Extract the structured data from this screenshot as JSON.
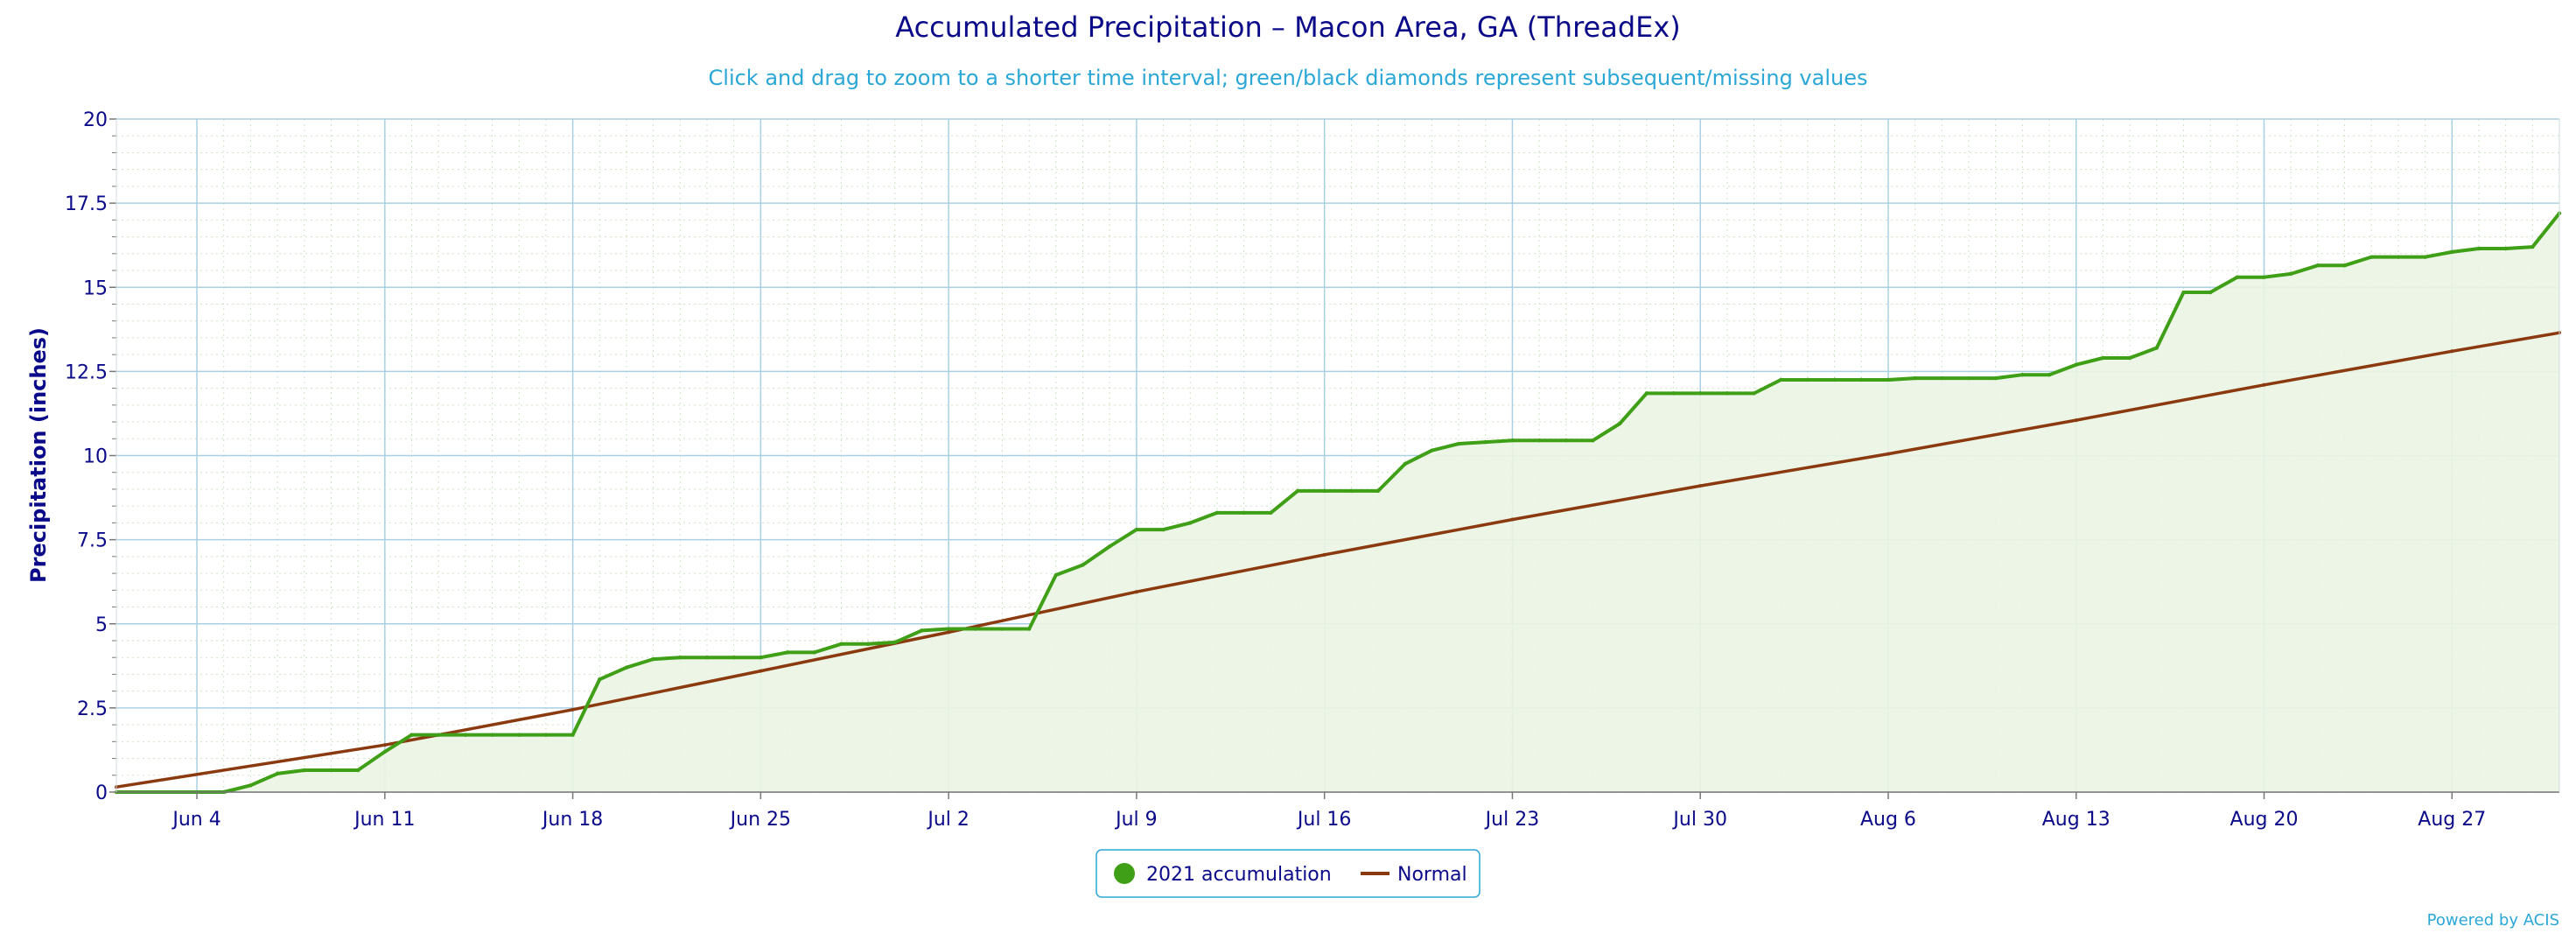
{
  "colors": {
    "accumulation": "#3f9f16",
    "accumulation_fill": "#eaf4e3",
    "normal": "#8b3a0f",
    "grid": "#a9d0e2",
    "title": "#0b0b8a",
    "subtitle": "#2aa7d6"
  },
  "legend": {
    "accumulation_label": "2021 accumulation",
    "normal_label": "Normal"
  },
  "credit": "Powered by ACIS",
  "chart_data": {
    "type": "line",
    "title": "Accumulated Precipitation – Macon Area, GA (ThreadEx)",
    "subtitle": "Click and drag to zoom to a shorter time interval; green/black diamonds represent subsequent/missing values",
    "ylabel": "Precipitation (inches)",
    "xlabel": "",
    "ylim": [
      0,
      20
    ],
    "xlim": [
      "2021-06-01",
      "2021-08-31"
    ],
    "yticks": [
      "0",
      "2.5",
      "5",
      "7.5",
      "10",
      "12.5",
      "15",
      "17.5",
      "20"
    ],
    "xticks": [
      {
        "date": "2021-06-04",
        "label": "Jun 4"
      },
      {
        "date": "2021-06-11",
        "label": "Jun 11"
      },
      {
        "date": "2021-06-18",
        "label": "Jun 18"
      },
      {
        "date": "2021-06-25",
        "label": "Jun 25"
      },
      {
        "date": "2021-07-02",
        "label": "Jul 2"
      },
      {
        "date": "2021-07-09",
        "label": "Jul 9"
      },
      {
        "date": "2021-07-16",
        "label": "Jul 16"
      },
      {
        "date": "2021-07-23",
        "label": "Jul 23"
      },
      {
        "date": "2021-07-30",
        "label": "Jul 30"
      },
      {
        "date": "2021-08-06",
        "label": "Aug 6"
      },
      {
        "date": "2021-08-13",
        "label": "Aug 13"
      },
      {
        "date": "2021-08-20",
        "label": "Aug 20"
      },
      {
        "date": "2021-08-27",
        "label": "Aug 27"
      }
    ],
    "grid": true,
    "legend_position": "bottom-center",
    "series": [
      {
        "name": "2021 accumulation",
        "points": [
          [
            "2021-06-01",
            0
          ],
          [
            "2021-06-05",
            0
          ],
          [
            "2021-06-06",
            0.2
          ],
          [
            "2021-06-07",
            0.55
          ],
          [
            "2021-06-08",
            0.65
          ],
          [
            "2021-06-09",
            0.65
          ],
          [
            "2021-06-10",
            0.65
          ],
          [
            "2021-06-11",
            1.2
          ],
          [
            "2021-06-12",
            1.7
          ],
          [
            "2021-06-13",
            1.7
          ],
          [
            "2021-06-14",
            1.7
          ],
          [
            "2021-06-15",
            1.7
          ],
          [
            "2021-06-16",
            1.7
          ],
          [
            "2021-06-17",
            1.7
          ],
          [
            "2021-06-18",
            1.7
          ],
          [
            "2021-06-19",
            3.35
          ],
          [
            "2021-06-20",
            3.7
          ],
          [
            "2021-06-21",
            3.95
          ],
          [
            "2021-06-22",
            4.0
          ],
          [
            "2021-06-23",
            4.0
          ],
          [
            "2021-06-24",
            4.0
          ],
          [
            "2021-06-25",
            4.0
          ],
          [
            "2021-06-26",
            4.15
          ],
          [
            "2021-06-27",
            4.15
          ],
          [
            "2021-06-28",
            4.4
          ],
          [
            "2021-06-29",
            4.4
          ],
          [
            "2021-06-30",
            4.45
          ],
          [
            "2021-07-01",
            4.8
          ],
          [
            "2021-07-02",
            4.85
          ],
          [
            "2021-07-03",
            4.85
          ],
          [
            "2021-07-04",
            4.85
          ],
          [
            "2021-07-05",
            4.85
          ],
          [
            "2021-07-06",
            6.45
          ],
          [
            "2021-07-07",
            6.75
          ],
          [
            "2021-07-08",
            7.3
          ],
          [
            "2021-07-09",
            7.8
          ],
          [
            "2021-07-10",
            7.8
          ],
          [
            "2021-07-11",
            8.0
          ],
          [
            "2021-07-12",
            8.3
          ],
          [
            "2021-07-13",
            8.3
          ],
          [
            "2021-07-14",
            8.3
          ],
          [
            "2021-07-15",
            8.95
          ],
          [
            "2021-07-16",
            8.95
          ],
          [
            "2021-07-17",
            8.95
          ],
          [
            "2021-07-18",
            8.95
          ],
          [
            "2021-07-19",
            9.75
          ],
          [
            "2021-07-20",
            10.15
          ],
          [
            "2021-07-21",
            10.35
          ],
          [
            "2021-07-22",
            10.4
          ],
          [
            "2021-07-23",
            10.45
          ],
          [
            "2021-07-24",
            10.45
          ],
          [
            "2021-07-25",
            10.45
          ],
          [
            "2021-07-26",
            10.45
          ],
          [
            "2021-07-27",
            10.95
          ],
          [
            "2021-07-28",
            11.85
          ],
          [
            "2021-07-29",
            11.85
          ],
          [
            "2021-07-30",
            11.85
          ],
          [
            "2021-07-31",
            11.85
          ],
          [
            "2021-08-01",
            11.85
          ],
          [
            "2021-08-02",
            12.25
          ],
          [
            "2021-08-03",
            12.25
          ],
          [
            "2021-08-04",
            12.25
          ],
          [
            "2021-08-05",
            12.25
          ],
          [
            "2021-08-06",
            12.25
          ],
          [
            "2021-08-07",
            12.3
          ],
          [
            "2021-08-08",
            12.3
          ],
          [
            "2021-08-09",
            12.3
          ],
          [
            "2021-08-10",
            12.3
          ],
          [
            "2021-08-11",
            12.4
          ],
          [
            "2021-08-12",
            12.4
          ],
          [
            "2021-08-13",
            12.7
          ],
          [
            "2021-08-14",
            12.9
          ],
          [
            "2021-08-15",
            12.9
          ],
          [
            "2021-08-16",
            13.2
          ],
          [
            "2021-08-17",
            14.85
          ],
          [
            "2021-08-18",
            14.85
          ],
          [
            "2021-08-19",
            15.3
          ],
          [
            "2021-08-20",
            15.3
          ],
          [
            "2021-08-21",
            15.4
          ],
          [
            "2021-08-22",
            15.65
          ],
          [
            "2021-08-23",
            15.65
          ],
          [
            "2021-08-24",
            15.9
          ],
          [
            "2021-08-25",
            15.9
          ],
          [
            "2021-08-26",
            15.9
          ],
          [
            "2021-08-27",
            16.05
          ],
          [
            "2021-08-28",
            16.15
          ],
          [
            "2021-08-29",
            16.15
          ],
          [
            "2021-08-30",
            16.2
          ],
          [
            "2021-08-31",
            17.2
          ]
        ]
      },
      {
        "name": "Normal",
        "points": [
          [
            "2021-06-01",
            0.15
          ],
          [
            "2021-06-11",
            1.4
          ],
          [
            "2021-06-18",
            2.45
          ],
          [
            "2021-06-25",
            3.6
          ],
          [
            "2021-07-02",
            4.75
          ],
          [
            "2021-07-09",
            5.95
          ],
          [
            "2021-07-16",
            7.05
          ],
          [
            "2021-07-23",
            8.1
          ],
          [
            "2021-07-30",
            9.1
          ],
          [
            "2021-08-06",
            10.05
          ],
          [
            "2021-08-13",
            11.05
          ],
          [
            "2021-08-20",
            12.1
          ],
          [
            "2021-08-27",
            13.1
          ],
          [
            "2021-08-31",
            13.65
          ]
        ]
      }
    ]
  }
}
